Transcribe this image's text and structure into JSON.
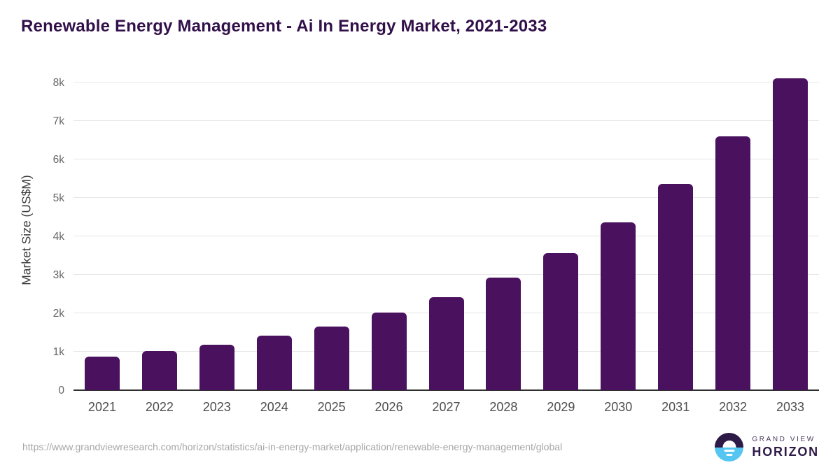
{
  "title": "Renewable Energy Management - Ai In Energy Market, 2021-2033",
  "chart_data": {
    "type": "bar",
    "title": "Renewable Energy Management - Ai In Energy Market, 2021-2033",
    "categories": [
      "2021",
      "2022",
      "2023",
      "2024",
      "2025",
      "2026",
      "2027",
      "2028",
      "2029",
      "2030",
      "2031",
      "2032",
      "2033"
    ],
    "values": [
      865,
      1015,
      1185,
      1420,
      1655,
      2020,
      2420,
      2935,
      3570,
      4370,
      5360,
      6600,
      8110
    ],
    "xlabel": "",
    "ylabel": "Market Size (US$M)",
    "ylim": [
      0,
      8330
    ],
    "yticks": [
      {
        "value": 0,
        "label": "0"
      },
      {
        "value": 1000,
        "label": "1k"
      },
      {
        "value": 2000,
        "label": "2k"
      },
      {
        "value": 3000,
        "label": "3k"
      },
      {
        "value": 4000,
        "label": "4k"
      },
      {
        "value": 5000,
        "label": "5k"
      },
      {
        "value": 6000,
        "label": "6k"
      },
      {
        "value": 7000,
        "label": "7k"
      },
      {
        "value": 8000,
        "label": "8k"
      }
    ],
    "grid": true,
    "legend": false,
    "bar_color": "#4a115f"
  },
  "footer": {
    "source_url": "https://www.grandviewresearch.com/horizon/statistics/ai-in-energy-market/application/renewable-energy-management/global",
    "logo": {
      "line1": "GRAND VIEW",
      "line2": "HORIZON"
    }
  },
  "colors": {
    "title": "#31104a",
    "bar": "#4a115f",
    "gridline": "#e7e7e7",
    "axis_line": "#303030",
    "y_tick_label": "#666666",
    "x_label": "#4d4d4d",
    "y_axis_title": "#3d3d3d",
    "source_url": "#a6a6a6",
    "logo_dark_purple": "#2e1a47",
    "logo_light_blue": "#55c6f2"
  }
}
